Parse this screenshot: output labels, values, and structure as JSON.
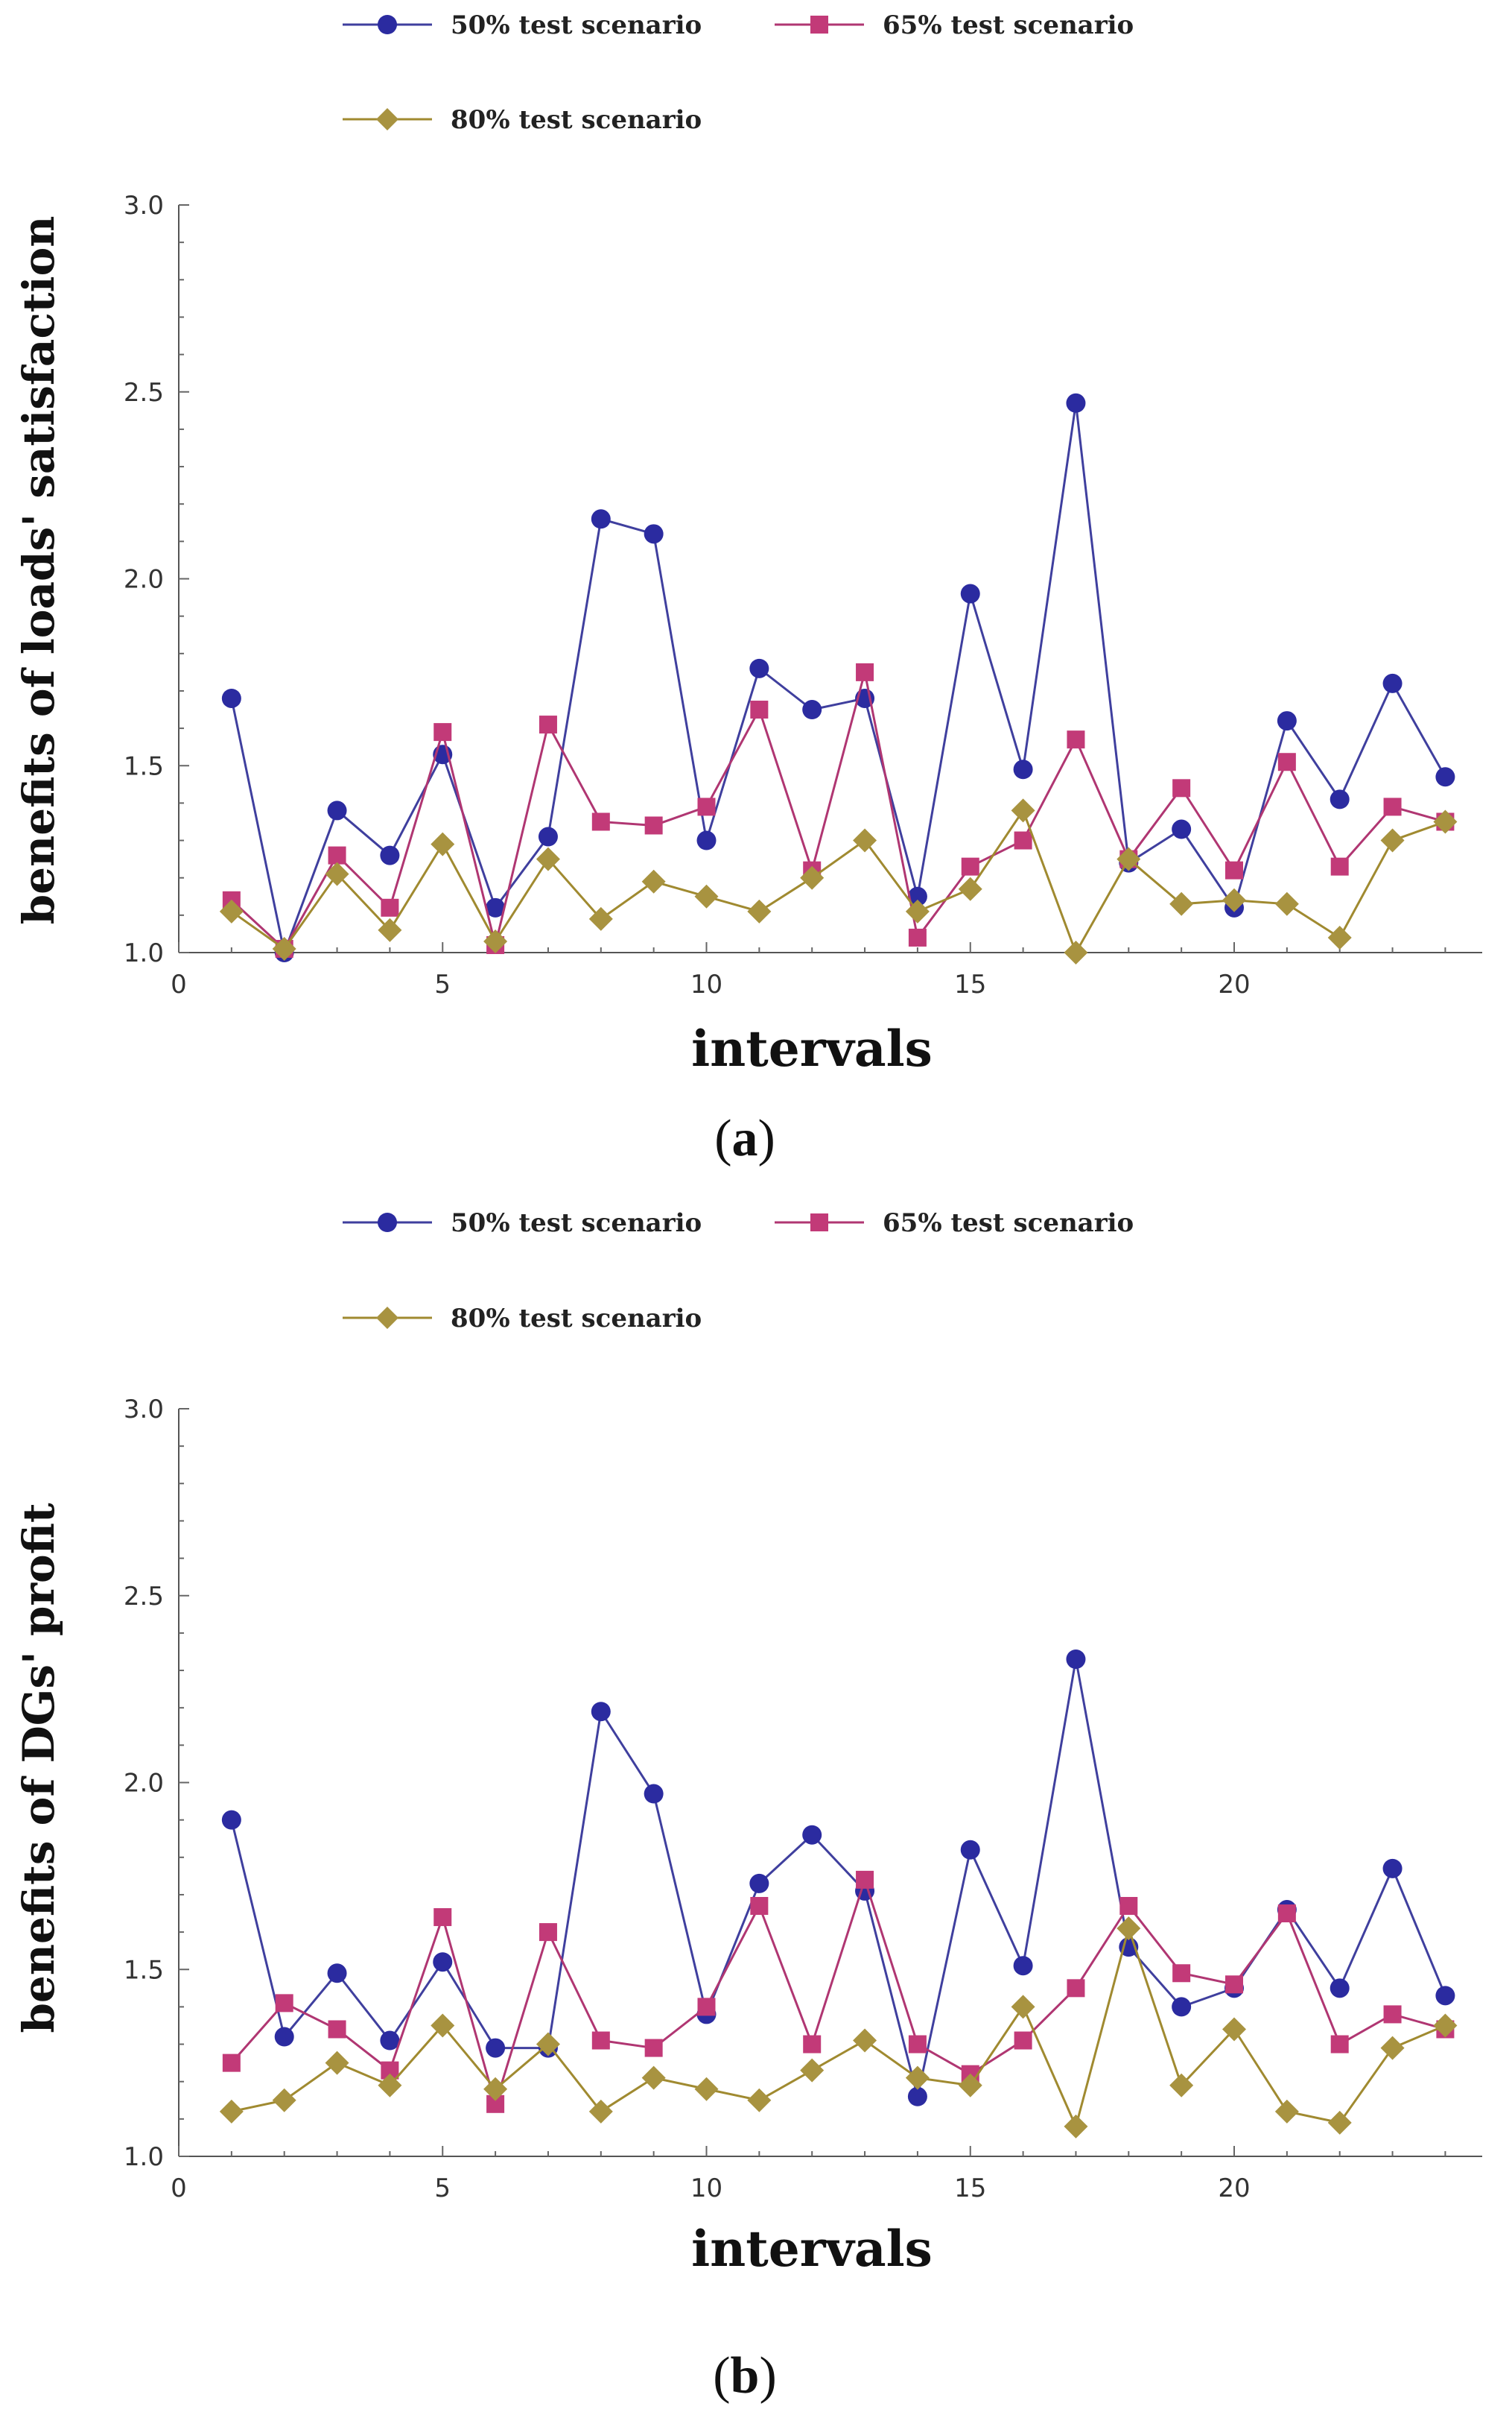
{
  "chart_data": [
    {
      "type": "line",
      "panel_label": "a",
      "xlabel": "intervals",
      "ylabel": "benefits of loads' satisfaction",
      "xlim": [
        0,
        24.7
      ],
      "ylim": [
        1.0,
        3.0
      ],
      "xticks": [
        0,
        5,
        10,
        15,
        20
      ],
      "yticks": [
        1.0,
        1.5,
        2.0,
        2.5,
        3.0
      ],
      "ytick_labels": [
        "1.0",
        "1.5",
        "2.0",
        "2.5",
        "3.0"
      ],
      "legend_position": "top",
      "x": [
        1,
        2,
        3,
        4,
        5,
        6,
        7,
        8,
        9,
        10,
        11,
        12,
        13,
        14,
        15,
        16,
        17,
        18,
        19,
        20,
        21,
        22,
        23,
        24
      ],
      "series": [
        {
          "name": "50% test scenario",
          "marker": "circle",
          "color": "#3f3f9e",
          "marker_color": "#2b2ba0",
          "values": [
            1.68,
            1.0,
            1.38,
            1.26,
            1.53,
            1.12,
            1.31,
            2.16,
            2.12,
            1.3,
            1.76,
            1.65,
            1.68,
            1.15,
            1.96,
            1.49,
            2.47,
            1.24,
            1.33,
            1.12,
            1.62,
            1.41,
            1.72,
            1.47
          ]
        },
        {
          "name": "65% test scenario",
          "marker": "square",
          "color": "#b03672",
          "marker_color": "#c23a78",
          "values": [
            1.14,
            1.01,
            1.26,
            1.12,
            1.59,
            1.02,
            1.61,
            1.35,
            1.34,
            1.39,
            1.65,
            1.22,
            1.75,
            1.04,
            1.23,
            1.3,
            1.57,
            1.25,
            1.44,
            1.22,
            1.51,
            1.23,
            1.39,
            1.35
          ]
        },
        {
          "name": "80% test scenario",
          "marker": "diamond",
          "color": "#a08a30",
          "marker_color": "#a89340",
          "values": [
            1.11,
            1.01,
            1.21,
            1.06,
            1.29,
            1.03,
            1.25,
            1.09,
            1.19,
            1.15,
            1.11,
            1.2,
            1.3,
            1.11,
            1.17,
            1.38,
            1.0,
            1.25,
            1.13,
            1.14,
            1.13,
            1.04,
            1.3,
            1.35
          ]
        }
      ]
    },
    {
      "type": "line",
      "panel_label": "b",
      "xlabel": "intervals",
      "ylabel": "benefits of DGs' profit",
      "xlim": [
        0,
        24.7
      ],
      "ylim": [
        1.0,
        3.0
      ],
      "xticks": [
        0,
        5,
        10,
        15,
        20
      ],
      "yticks": [
        1.0,
        1.5,
        2.0,
        2.5,
        3.0
      ],
      "ytick_labels": [
        "1.0",
        "1.5",
        "2.0",
        "2.5",
        "3.0"
      ],
      "legend_position": "top",
      "x": [
        1,
        2,
        3,
        4,
        5,
        6,
        7,
        8,
        9,
        10,
        11,
        12,
        13,
        14,
        15,
        16,
        17,
        18,
        19,
        20,
        21,
        22,
        23,
        24
      ],
      "series": [
        {
          "name": "50% test scenario",
          "marker": "circle",
          "color": "#3f3f9e",
          "marker_color": "#2b2ba0",
          "values": [
            1.9,
            1.32,
            1.49,
            1.31,
            1.52,
            1.29,
            1.29,
            2.19,
            1.97,
            1.38,
            1.73,
            1.86,
            1.71,
            1.16,
            1.82,
            1.51,
            2.33,
            1.56,
            1.4,
            1.45,
            1.66,
            1.45,
            1.77,
            1.43
          ]
        },
        {
          "name": "65% test scenario",
          "marker": "square",
          "color": "#b03672",
          "marker_color": "#c23a78",
          "values": [
            1.25,
            1.41,
            1.34,
            1.23,
            1.64,
            1.14,
            1.6,
            1.31,
            1.29,
            1.4,
            1.67,
            1.3,
            1.74,
            1.3,
            1.22,
            1.31,
            1.45,
            1.67,
            1.49,
            1.46,
            1.65,
            1.3,
            1.38,
            1.34
          ]
        },
        {
          "name": "80% test scenario",
          "marker": "diamond",
          "color": "#a08a30",
          "marker_color": "#a89340",
          "values": [
            1.12,
            1.15,
            1.25,
            1.19,
            1.35,
            1.18,
            1.3,
            1.12,
            1.21,
            1.18,
            1.15,
            1.23,
            1.31,
            1.21,
            1.19,
            1.4,
            1.08,
            1.61,
            1.19,
            1.34,
            1.12,
            1.09,
            1.29,
            1.35
          ]
        }
      ]
    }
  ]
}
